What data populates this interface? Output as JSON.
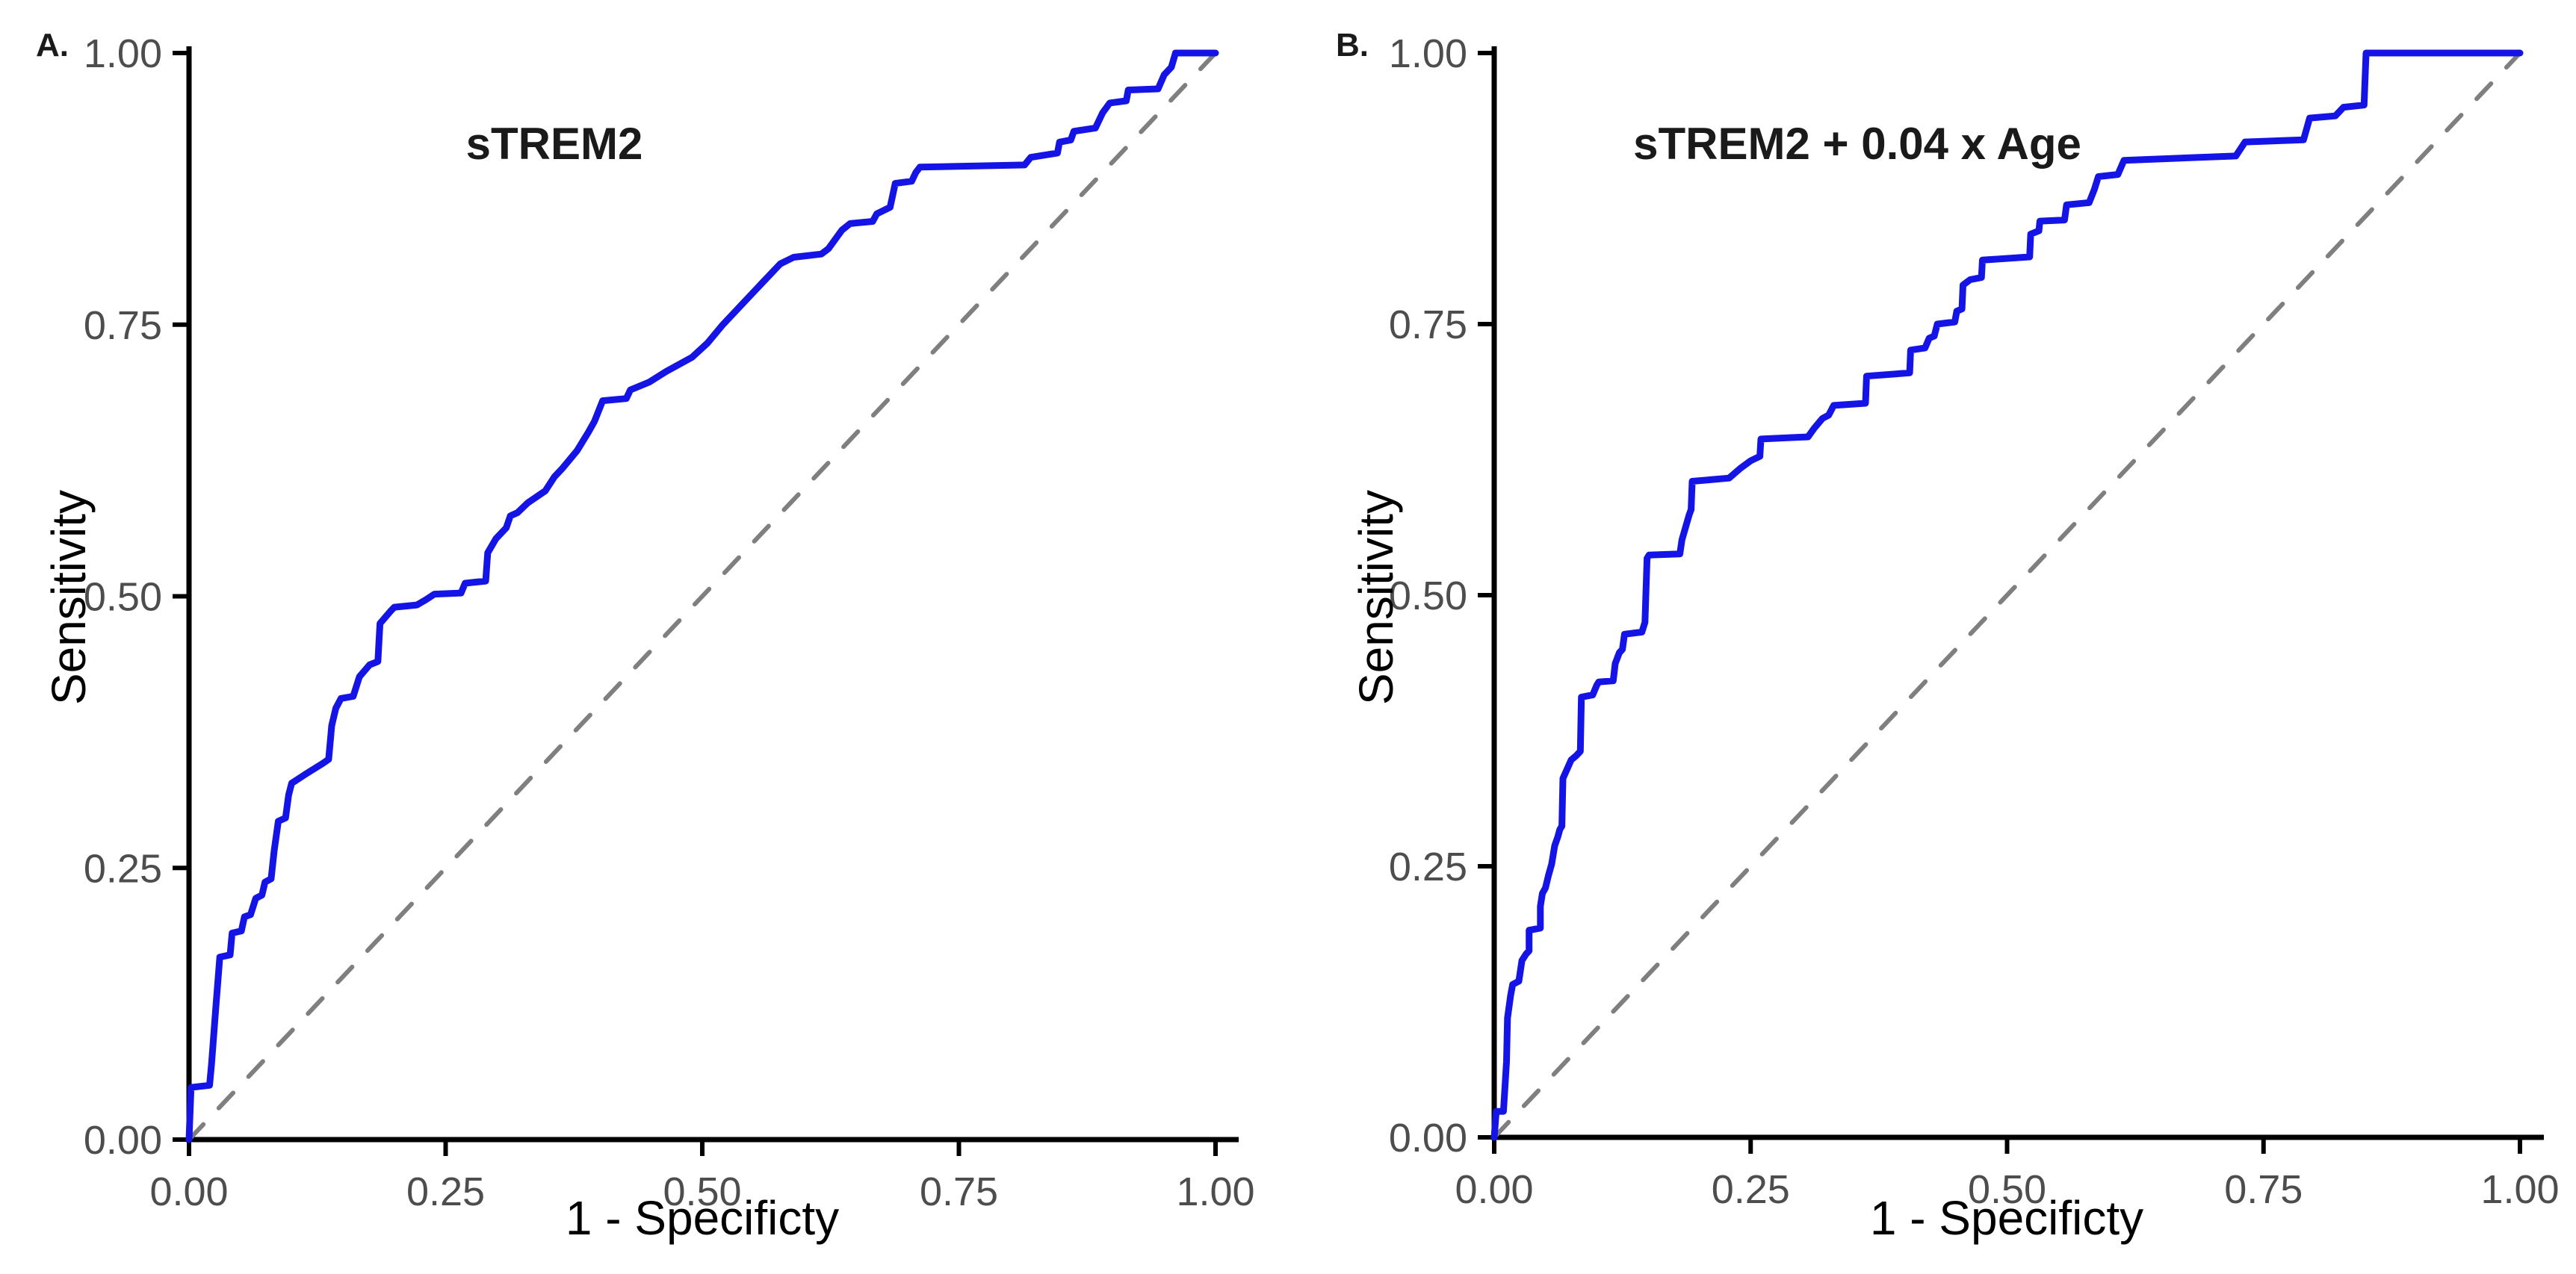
{
  "colors": {
    "curve": "#1414e6",
    "reference": "#7f7f7f",
    "axis": "#000000",
    "tick_text": "#4d4d4d",
    "background": "#ffffff"
  },
  "chart_data": [
    {
      "type": "line",
      "panel_label": "A.",
      "title": "sTREM2",
      "xlabel": "1 - Specificty",
      "ylabel": "Sensitivity",
      "x_tick_labels": [
        "0.00",
        "0.25",
        "0.50",
        "0.75",
        "1.00"
      ],
      "y_tick_labels": [
        "0.00",
        "0.25",
        "0.50",
        "0.75",
        "1.00"
      ],
      "xlim": [
        0,
        1
      ],
      "ylim": [
        0,
        1
      ],
      "grid": false,
      "legend": "none",
      "series": [
        {
          "name": "ROC curve sTREM2",
          "style": "solid",
          "points": [
            [
              0.0,
              0.0
            ],
            [
              0.002,
              0.048
            ],
            [
              0.02,
              0.05
            ],
            [
              0.022,
              0.07
            ],
            [
              0.026,
              0.12
            ],
            [
              0.03,
              0.168
            ],
            [
              0.04,
              0.17
            ],
            [
              0.042,
              0.19
            ],
            [
              0.051,
              0.192
            ],
            [
              0.054,
              0.205
            ],
            [
              0.06,
              0.207
            ],
            [
              0.065,
              0.222
            ],
            [
              0.071,
              0.225
            ],
            [
              0.074,
              0.237
            ],
            [
              0.08,
              0.24
            ],
            [
              0.083,
              0.266
            ],
            [
              0.087,
              0.293
            ],
            [
              0.094,
              0.296
            ],
            [
              0.097,
              0.317
            ],
            [
              0.1,
              0.328
            ],
            [
              0.113,
              0.336
            ],
            [
              0.13,
              0.346
            ],
            [
              0.136,
              0.35
            ],
            [
              0.139,
              0.381
            ],
            [
              0.143,
              0.397
            ],
            [
              0.148,
              0.406
            ],
            [
              0.16,
              0.408
            ],
            [
              0.166,
              0.426
            ],
            [
              0.176,
              0.437
            ],
            [
              0.184,
              0.44
            ],
            [
              0.186,
              0.475
            ],
            [
              0.196,
              0.486
            ],
            [
              0.2,
              0.49
            ],
            [
              0.222,
              0.492
            ],
            [
              0.231,
              0.497
            ],
            [
              0.239,
              0.502
            ],
            [
              0.265,
              0.503
            ],
            [
              0.269,
              0.512
            ],
            [
              0.289,
              0.514
            ],
            [
              0.291,
              0.54
            ],
            [
              0.299,
              0.553
            ],
            [
              0.309,
              0.563
            ],
            [
              0.313,
              0.574
            ],
            [
              0.32,
              0.577
            ],
            [
              0.33,
              0.586
            ],
            [
              0.347,
              0.597
            ],
            [
              0.356,
              0.61
            ],
            [
              0.364,
              0.618
            ],
            [
              0.378,
              0.634
            ],
            [
              0.389,
              0.651
            ],
            [
              0.395,
              0.661
            ],
            [
              0.403,
              0.68
            ],
            [
              0.426,
              0.682
            ],
            [
              0.43,
              0.69
            ],
            [
              0.448,
              0.697
            ],
            [
              0.465,
              0.707
            ],
            [
              0.49,
              0.72
            ],
            [
              0.505,
              0.733
            ],
            [
              0.52,
              0.75
            ],
            [
              0.54,
              0.77
            ],
            [
              0.56,
              0.79
            ],
            [
              0.576,
              0.806
            ],
            [
              0.589,
              0.812
            ],
            [
              0.616,
              0.815
            ],
            [
              0.623,
              0.82
            ],
            [
              0.636,
              0.837
            ],
            [
              0.644,
              0.843
            ],
            [
              0.666,
              0.845
            ],
            [
              0.67,
              0.852
            ],
            [
              0.683,
              0.858
            ],
            [
              0.688,
              0.88
            ],
            [
              0.704,
              0.882
            ],
            [
              0.708,
              0.89
            ],
            [
              0.712,
              0.895
            ],
            [
              0.814,
              0.897
            ],
            [
              0.82,
              0.904
            ],
            [
              0.833,
              0.906
            ],
            [
              0.846,
              0.908
            ],
            [
              0.848,
              0.918
            ],
            [
              0.859,
              0.92
            ],
            [
              0.862,
              0.928
            ],
            [
              0.883,
              0.931
            ],
            [
              0.89,
              0.945
            ],
            [
              0.897,
              0.954
            ],
            [
              0.913,
              0.956
            ],
            [
              0.915,
              0.966
            ],
            [
              0.944,
              0.967
            ],
            [
              0.95,
              0.98
            ],
            [
              0.957,
              0.987
            ],
            [
              0.961,
              1.0
            ],
            [
              1.0,
              1.0
            ]
          ]
        },
        {
          "name": "chance reference line",
          "style": "dashed",
          "points": [
            [
              0,
              0
            ],
            [
              1,
              1
            ]
          ]
        }
      ]
    },
    {
      "type": "line",
      "panel_label": "B.",
      "title": "sTREM2 + 0.04 x Age",
      "xlabel": "1 - Specificty",
      "ylabel": "Sensitivity",
      "x_tick_labels": [
        "0.00",
        "0.25",
        "0.50",
        "0.75",
        "1.00"
      ],
      "y_tick_labels": [
        "0.00",
        "0.25",
        "0.50",
        "0.75",
        "1.00"
      ],
      "xlim": [
        0,
        1
      ],
      "ylim": [
        0,
        1
      ],
      "grid": false,
      "legend": "none",
      "series": [
        {
          "name": "ROC curve sTREM2 + 0.04 x Age",
          "style": "solid",
          "points": [
            [
              0.0,
              0.0
            ],
            [
              0.002,
              0.024
            ],
            [
              0.009,
              0.024
            ],
            [
              0.012,
              0.07
            ],
            [
              0.013,
              0.11
            ],
            [
              0.016,
              0.131
            ],
            [
              0.018,
              0.141
            ],
            [
              0.024,
              0.144
            ],
            [
              0.027,
              0.163
            ],
            [
              0.031,
              0.169
            ],
            [
              0.034,
              0.172
            ],
            [
              0.034,
              0.191
            ],
            [
              0.045,
              0.193
            ],
            [
              0.045,
              0.213
            ],
            [
              0.047,
              0.225
            ],
            [
              0.05,
              0.23
            ],
            [
              0.053,
              0.242
            ],
            [
              0.056,
              0.252
            ],
            [
              0.059,
              0.269
            ],
            [
              0.062,
              0.277
            ],
            [
              0.064,
              0.284
            ],
            [
              0.066,
              0.287
            ],
            [
              0.067,
              0.331
            ],
            [
              0.075,
              0.348
            ],
            [
              0.08,
              0.352
            ],
            [
              0.084,
              0.356
            ],
            [
              0.085,
              0.406
            ],
            [
              0.096,
              0.408
            ],
            [
              0.1,
              0.417
            ],
            [
              0.102,
              0.42
            ],
            [
              0.116,
              0.421
            ],
            [
              0.118,
              0.437
            ],
            [
              0.122,
              0.447
            ],
            [
              0.125,
              0.45
            ],
            [
              0.127,
              0.464
            ],
            [
              0.144,
              0.466
            ],
            [
              0.147,
              0.475
            ],
            [
              0.149,
              0.534
            ],
            [
              0.151,
              0.537
            ],
            [
              0.181,
              0.538
            ],
            [
              0.183,
              0.551
            ],
            [
              0.19,
              0.574
            ],
            [
              0.192,
              0.579
            ],
            [
              0.193,
              0.605
            ],
            [
              0.229,
              0.608
            ],
            [
              0.24,
              0.617
            ],
            [
              0.25,
              0.624
            ],
            [
              0.259,
              0.628
            ],
            [
              0.26,
              0.644
            ],
            [
              0.306,
              0.646
            ],
            [
              0.312,
              0.654
            ],
            [
              0.32,
              0.663
            ],
            [
              0.326,
              0.666
            ],
            [
              0.331,
              0.675
            ],
            [
              0.362,
              0.677
            ],
            [
              0.363,
              0.702
            ],
            [
              0.405,
              0.705
            ],
            [
              0.406,
              0.726
            ],
            [
              0.42,
              0.728
            ],
            [
              0.424,
              0.737
            ],
            [
              0.429,
              0.739
            ],
            [
              0.432,
              0.75
            ],
            [
              0.449,
              0.752
            ],
            [
              0.451,
              0.762
            ],
            [
              0.456,
              0.764
            ],
            [
              0.457,
              0.786
            ],
            [
              0.464,
              0.791
            ],
            [
              0.475,
              0.793
            ],
            [
              0.476,
              0.809
            ],
            [
              0.522,
              0.812
            ],
            [
              0.523,
              0.833
            ],
            [
              0.531,
              0.836
            ],
            [
              0.532,
              0.845
            ],
            [
              0.556,
              0.846
            ],
            [
              0.558,
              0.86
            ],
            [
              0.58,
              0.862
            ],
            [
              0.585,
              0.874
            ],
            [
              0.589,
              0.886
            ],
            [
              0.608,
              0.888
            ],
            [
              0.614,
              0.901
            ],
            [
              0.723,
              0.905
            ],
            [
              0.732,
              0.918
            ],
            [
              0.789,
              0.92
            ],
            [
              0.795,
              0.94
            ],
            [
              0.82,
              0.942
            ],
            [
              0.828,
              0.95
            ],
            [
              0.848,
              0.952
            ],
            [
              0.85,
              1.0
            ],
            [
              1.0,
              1.0
            ]
          ]
        },
        {
          "name": "chance reference line",
          "style": "dashed",
          "points": [
            [
              0,
              0
            ],
            [
              1,
              1
            ]
          ]
        }
      ]
    }
  ]
}
